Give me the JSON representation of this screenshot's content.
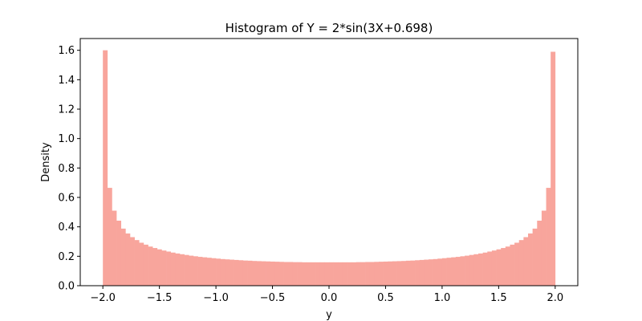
{
  "chart_data": {
    "type": "bar",
    "title": "Histogram of Y = 2*sin(3X+0.698)",
    "xlabel": "y",
    "ylabel": "Density",
    "xlim": [
      -2.2,
      2.2
    ],
    "ylim": [
      0,
      1.68
    ],
    "bin_range": [
      -2.0,
      2.0
    ],
    "x_ticks": [
      -2.0,
      -1.5,
      -1.0,
      -0.5,
      0.0,
      0.5,
      1.0,
      1.5,
      2.0
    ],
    "x_tick_labels": [
      "−2.0",
      "−1.5",
      "−1.0",
      "−0.5",
      "0.0",
      "0.5",
      "1.0",
      "1.5",
      "2.0"
    ],
    "y_ticks": [
      0.0,
      0.2,
      0.4,
      0.6,
      0.8,
      1.0,
      1.2,
      1.4,
      1.6
    ],
    "y_tick_labels": [
      "0.0",
      "0.2",
      "0.4",
      "0.6",
      "0.8",
      "1.0",
      "1.2",
      "1.4",
      "1.6"
    ],
    "bar_color": "#f8a59c",
    "values": [
      1.6,
      0.665,
      0.51,
      0.442,
      0.388,
      0.355,
      0.33,
      0.31,
      0.292,
      0.279,
      0.266,
      0.256,
      0.247,
      0.239,
      0.232,
      0.225,
      0.219,
      0.214,
      0.209,
      0.204,
      0.2,
      0.196,
      0.193,
      0.19,
      0.187,
      0.184,
      0.181,
      0.179,
      0.177,
      0.175,
      0.173,
      0.171,
      0.17,
      0.168,
      0.167,
      0.166,
      0.165,
      0.164,
      0.163,
      0.162,
      0.161,
      0.161,
      0.16,
      0.16,
      0.159,
      0.159,
      0.159,
      0.159,
      0.159,
      0.159,
      0.159,
      0.159,
      0.159,
      0.159,
      0.159,
      0.159,
      0.16,
      0.16,
      0.161,
      0.161,
      0.162,
      0.163,
      0.164,
      0.165,
      0.166,
      0.167,
      0.168,
      0.17,
      0.171,
      0.173,
      0.175,
      0.177,
      0.179,
      0.181,
      0.184,
      0.187,
      0.19,
      0.193,
      0.196,
      0.2,
      0.204,
      0.209,
      0.214,
      0.219,
      0.225,
      0.232,
      0.239,
      0.247,
      0.256,
      0.266,
      0.279,
      0.292,
      0.31,
      0.33,
      0.355,
      0.388,
      0.442,
      0.51,
      0.665,
      1.59
    ]
  }
}
